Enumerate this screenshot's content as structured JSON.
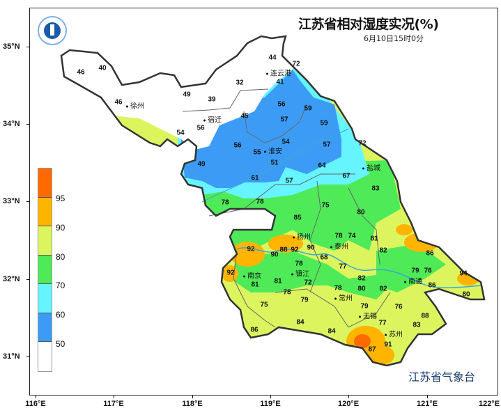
{
  "title": "江苏省相对湿度实况(%)",
  "subtitle": "6月10日15时0分",
  "agency": "江苏省气象台",
  "logo": {
    "name": "jiangsu-meteorological-logo"
  },
  "axes": {
    "lat_labels": [
      "35°N",
      "34°N",
      "33°N",
      "32°N",
      "31°N"
    ],
    "lon_labels": [
      "116°E",
      "117°E",
      "118°E",
      "119°E",
      "120°E",
      "121°E",
      "122°E"
    ]
  },
  "legend": {
    "levels": [
      "95",
      "90",
      "80",
      "70",
      "60",
      "50"
    ],
    "colors": [
      "#ff6a00",
      "#ffb400",
      "#dcf55f",
      "#4fea57",
      "#66f4ff",
      "#3c9cf5",
      "#ffffff"
    ]
  },
  "cities": [
    "连云港",
    "徐州",
    "宿迁",
    "淮安",
    "盐城",
    "扬州",
    "泰州",
    "南京",
    "镇江",
    "常州",
    "南通",
    "无锡",
    "苏州"
  ],
  "stations": [
    46,
    40,
    32,
    44,
    72,
    41,
    49,
    39,
    46,
    56,
    45,
    59,
    56,
    57,
    59,
    54,
    54,
    56,
    55,
    57,
    72,
    49,
    51,
    64,
    61,
    57,
    67,
    83,
    78,
    78,
    75,
    80,
    85,
    78,
    74,
    81,
    92,
    88,
    92,
    90,
    90,
    82,
    86,
    68,
    77,
    92,
    78,
    81,
    72,
    79,
    76,
    94,
    82,
    81,
    80,
    86,
    78,
    78,
    82,
    80,
    79,
    76,
    75,
    79,
    88,
    84,
    77,
    83,
    86,
    84,
    91,
    87
  ]
}
